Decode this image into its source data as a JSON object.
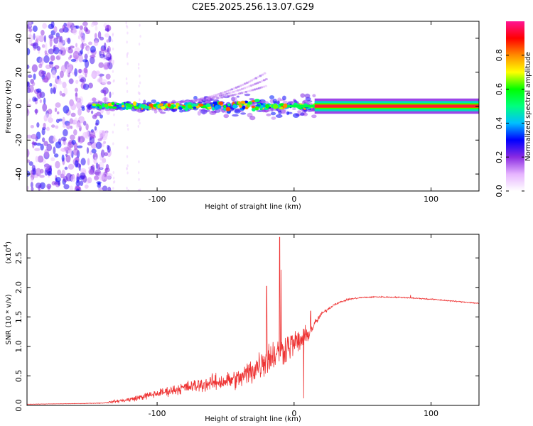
{
  "title": "C2E5.2025.256.13.07.G29",
  "colors": {
    "snr_line": "#ee3333",
    "colormap": [
      "#ffffff",
      "#e6b4ff",
      "#8a2be2",
      "#0000ff",
      "#00bfff",
      "#00ff7f",
      "#00ff00",
      "#ffff00",
      "#ff8c00",
      "#ff0000",
      "#ff1493"
    ]
  },
  "chart_data": [
    {
      "type": "heatmap",
      "name": "spectrogram",
      "title": "C2E5.2025.256.13.07.G29",
      "xlabel": "Height of straight line (km)",
      "ylabel": "Frequency (Hz)",
      "xlim": [
        -195,
        135
      ],
      "ylim": [
        -50,
        50
      ],
      "xticks": [
        -100,
        0,
        100
      ],
      "yticks": [
        -40,
        -20,
        0,
        20,
        40
      ],
      "colorbar": {
        "label": "Normalized spectral amplitude",
        "range": [
          0,
          1
        ],
        "ticks": [
          "0.0",
          "0.2",
          "0.4",
          "0.6",
          "0.8"
        ],
        "tick_values": [
          0,
          0.2,
          0.4,
          0.6,
          0.8
        ]
      },
      "features": {
        "noise_region_x": [
          -195,
          -140
        ],
        "carrier_frequency": 0,
        "strong_carrier_start_x": 15,
        "line_end_x": 135
      }
    },
    {
      "type": "line",
      "name": "snr",
      "xlabel": "Height of straight line (km)",
      "ylabel": "SNR (10 * v/v)",
      "scale_label": "(x10",
      "scale_exponent": "4",
      "scale_suffix": ")",
      "xlim": [
        -195,
        135
      ],
      "ylim": [
        0,
        2.9
      ],
      "xticks": [
        -100,
        0,
        100
      ],
      "yticks": [
        "0.0",
        "0.5",
        "1.0",
        "1.5",
        "2.0",
        "2.5"
      ],
      "ytick_values": [
        0,
        0.5,
        1.0,
        1.5,
        2.0,
        2.5
      ],
      "envelope": {
        "x": [
          -195,
          -160,
          -140,
          -120,
          -100,
          -80,
          -60,
          -40,
          -30,
          -20,
          -10,
          -5,
          5,
          10,
          20,
          30,
          40,
          50,
          60,
          80,
          100,
          120,
          135
        ],
        "mean": [
          0.02,
          0.03,
          0.04,
          0.1,
          0.2,
          0.3,
          0.38,
          0.45,
          0.6,
          0.8,
          0.9,
          1.0,
          1.1,
          1.2,
          1.55,
          1.72,
          1.8,
          1.83,
          1.84,
          1.83,
          1.8,
          1.76,
          1.73
        ],
        "noise": [
          0.005,
          0.005,
          0.01,
          0.06,
          0.1,
          0.15,
          0.2,
          0.25,
          0.38,
          0.42,
          0.4,
          0.38,
          0.3,
          0.2,
          0.05,
          0.025,
          0.02,
          0.015,
          0.015,
          0.015,
          0.015,
          0.015,
          0.015
        ]
      },
      "spikes": [
        {
          "x": -10.5,
          "y": 2.85
        },
        {
          "x": -9.5,
          "y": 2.3
        },
        {
          "x": -20,
          "y": 2.02
        },
        {
          "x": 7,
          "y": 0.12
        },
        {
          "x": 12,
          "y": 1.6
        },
        {
          "x": 85,
          "y": 1.87
        }
      ]
    }
  ]
}
